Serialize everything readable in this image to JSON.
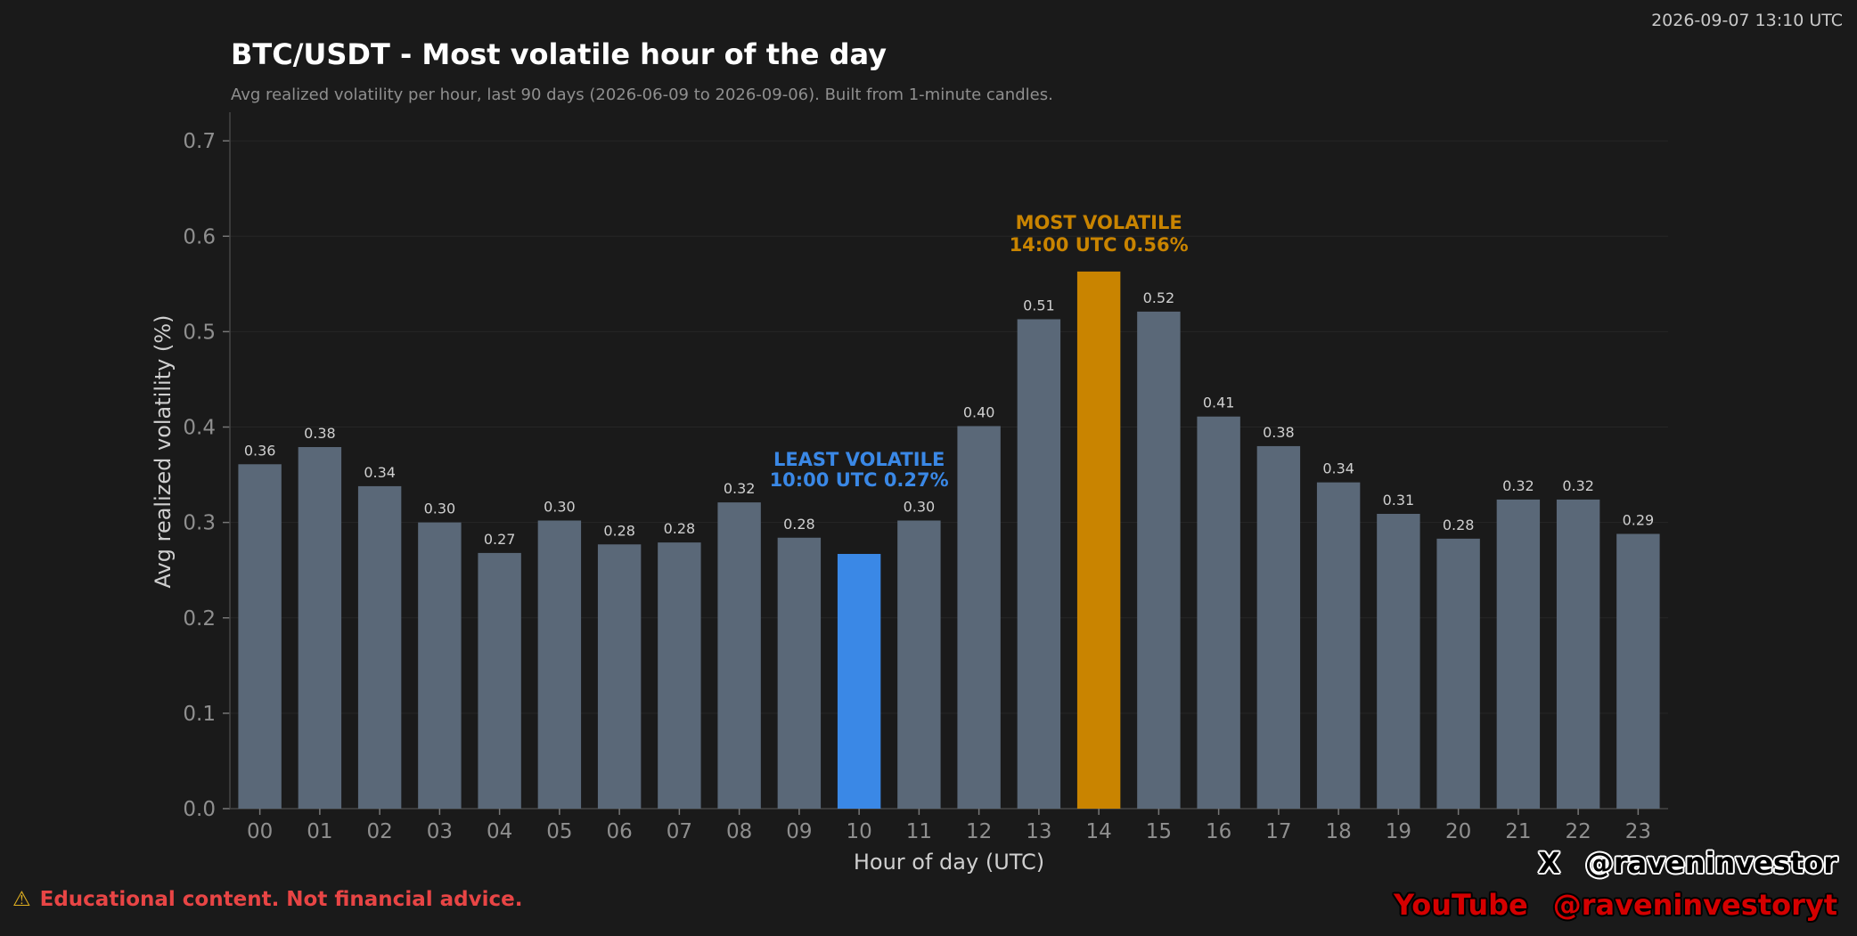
{
  "header": {
    "timestamp": "2026-09-07 13:10 UTC"
  },
  "footer": {
    "warning_icon": "⚠",
    "disclaimer": "Educational content. Not financial advice.",
    "x_logo": "X",
    "x_handle": "@raveninvestor",
    "youtube_label": "YouTube",
    "youtube_handle": "@raveninvestoryt"
  },
  "colors": {
    "background": "#1a1a1a",
    "bar": "#5a6878",
    "most": "#c98400",
    "least": "#3a88e6",
    "disclaimer": "#e84545"
  },
  "chart_data": {
    "type": "bar",
    "title": "BTC/USDT - Most volatile hour of the day",
    "subtitle": "Avg realized volatility per hour, last 90 days (2026-06-09 to 2026-09-06). Built from 1-minute candles.",
    "xlabel": "Hour of day (UTC)",
    "ylabel": "Avg realized volatility (%)",
    "categories": [
      "00",
      "01",
      "02",
      "03",
      "04",
      "05",
      "06",
      "07",
      "08",
      "09",
      "10",
      "11",
      "12",
      "13",
      "14",
      "15",
      "16",
      "17",
      "18",
      "19",
      "20",
      "21",
      "22",
      "23"
    ],
    "values": [
      0.361,
      0.379,
      0.338,
      0.3,
      0.268,
      0.302,
      0.277,
      0.279,
      0.321,
      0.284,
      0.267,
      0.302,
      0.401,
      0.513,
      0.563,
      0.521,
      0.411,
      0.38,
      0.342,
      0.309,
      0.283,
      0.324,
      0.324,
      0.288
    ],
    "value_labels": [
      "0.36",
      "0.38",
      "0.34",
      "0.30",
      "0.27",
      "0.30",
      "0.28",
      "0.28",
      "0.32",
      "0.28",
      "",
      "0.30",
      "0.40",
      "0.51",
      "",
      "0.52",
      "0.41",
      "0.38",
      "0.34",
      "0.31",
      "0.28",
      "0.32",
      "0.32",
      "0.29"
    ],
    "ylim": [
      0,
      0.73
    ],
    "yticks": [
      "0.0",
      "0.1",
      "0.2",
      "0.3",
      "0.4",
      "0.5",
      "0.6",
      "0.7"
    ],
    "grid": true,
    "most_volatile": {
      "index": 14,
      "line1": "MOST VOLATILE",
      "line2": "14:00 UTC  0.56%"
    },
    "least_volatile": {
      "index": 10,
      "line1": "LEAST VOLATILE",
      "line2": "10:00 UTC  0.27%"
    }
  }
}
